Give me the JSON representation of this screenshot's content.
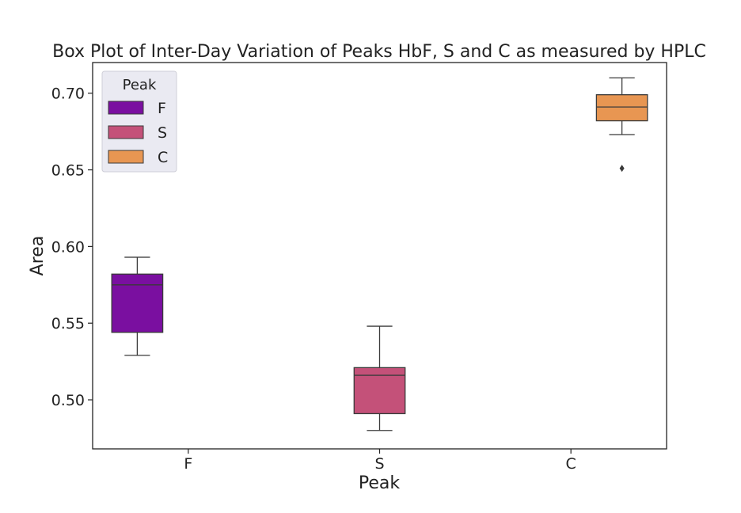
{
  "chart_data": {
    "type": "box",
    "title": "Box Plot of Inter-Day Variation of Peaks HbF, S and C as measured by HPLC",
    "xlabel": "Peak",
    "ylabel": "Area",
    "categories": [
      "F",
      "S",
      "C"
    ],
    "ylim": [
      0.468,
      0.72
    ],
    "yticks": [
      0.5,
      0.55,
      0.6,
      0.65,
      0.7
    ],
    "ytick_labels": [
      "0.50",
      "0.55",
      "0.60",
      "0.65",
      "0.70"
    ],
    "series": [
      {
        "name": "F",
        "color": "#7a0fa0",
        "whisker_low": 0.529,
        "q1": 0.544,
        "median": 0.575,
        "q3": 0.582,
        "whisker_high": 0.593,
        "outliers": []
      },
      {
        "name": "S",
        "color": "#c45179",
        "whisker_low": 0.48,
        "q1": 0.491,
        "median": 0.516,
        "q3": 0.521,
        "whisker_high": 0.548,
        "outliers": []
      },
      {
        "name": "C",
        "color": "#e89652",
        "whisker_low": 0.673,
        "q1": 0.682,
        "median": 0.691,
        "q3": 0.699,
        "whisker_high": 0.71,
        "outliers": [
          0.651
        ]
      }
    ],
    "legend": {
      "title": "Peak",
      "position": "upper-left"
    },
    "grid": false
  }
}
